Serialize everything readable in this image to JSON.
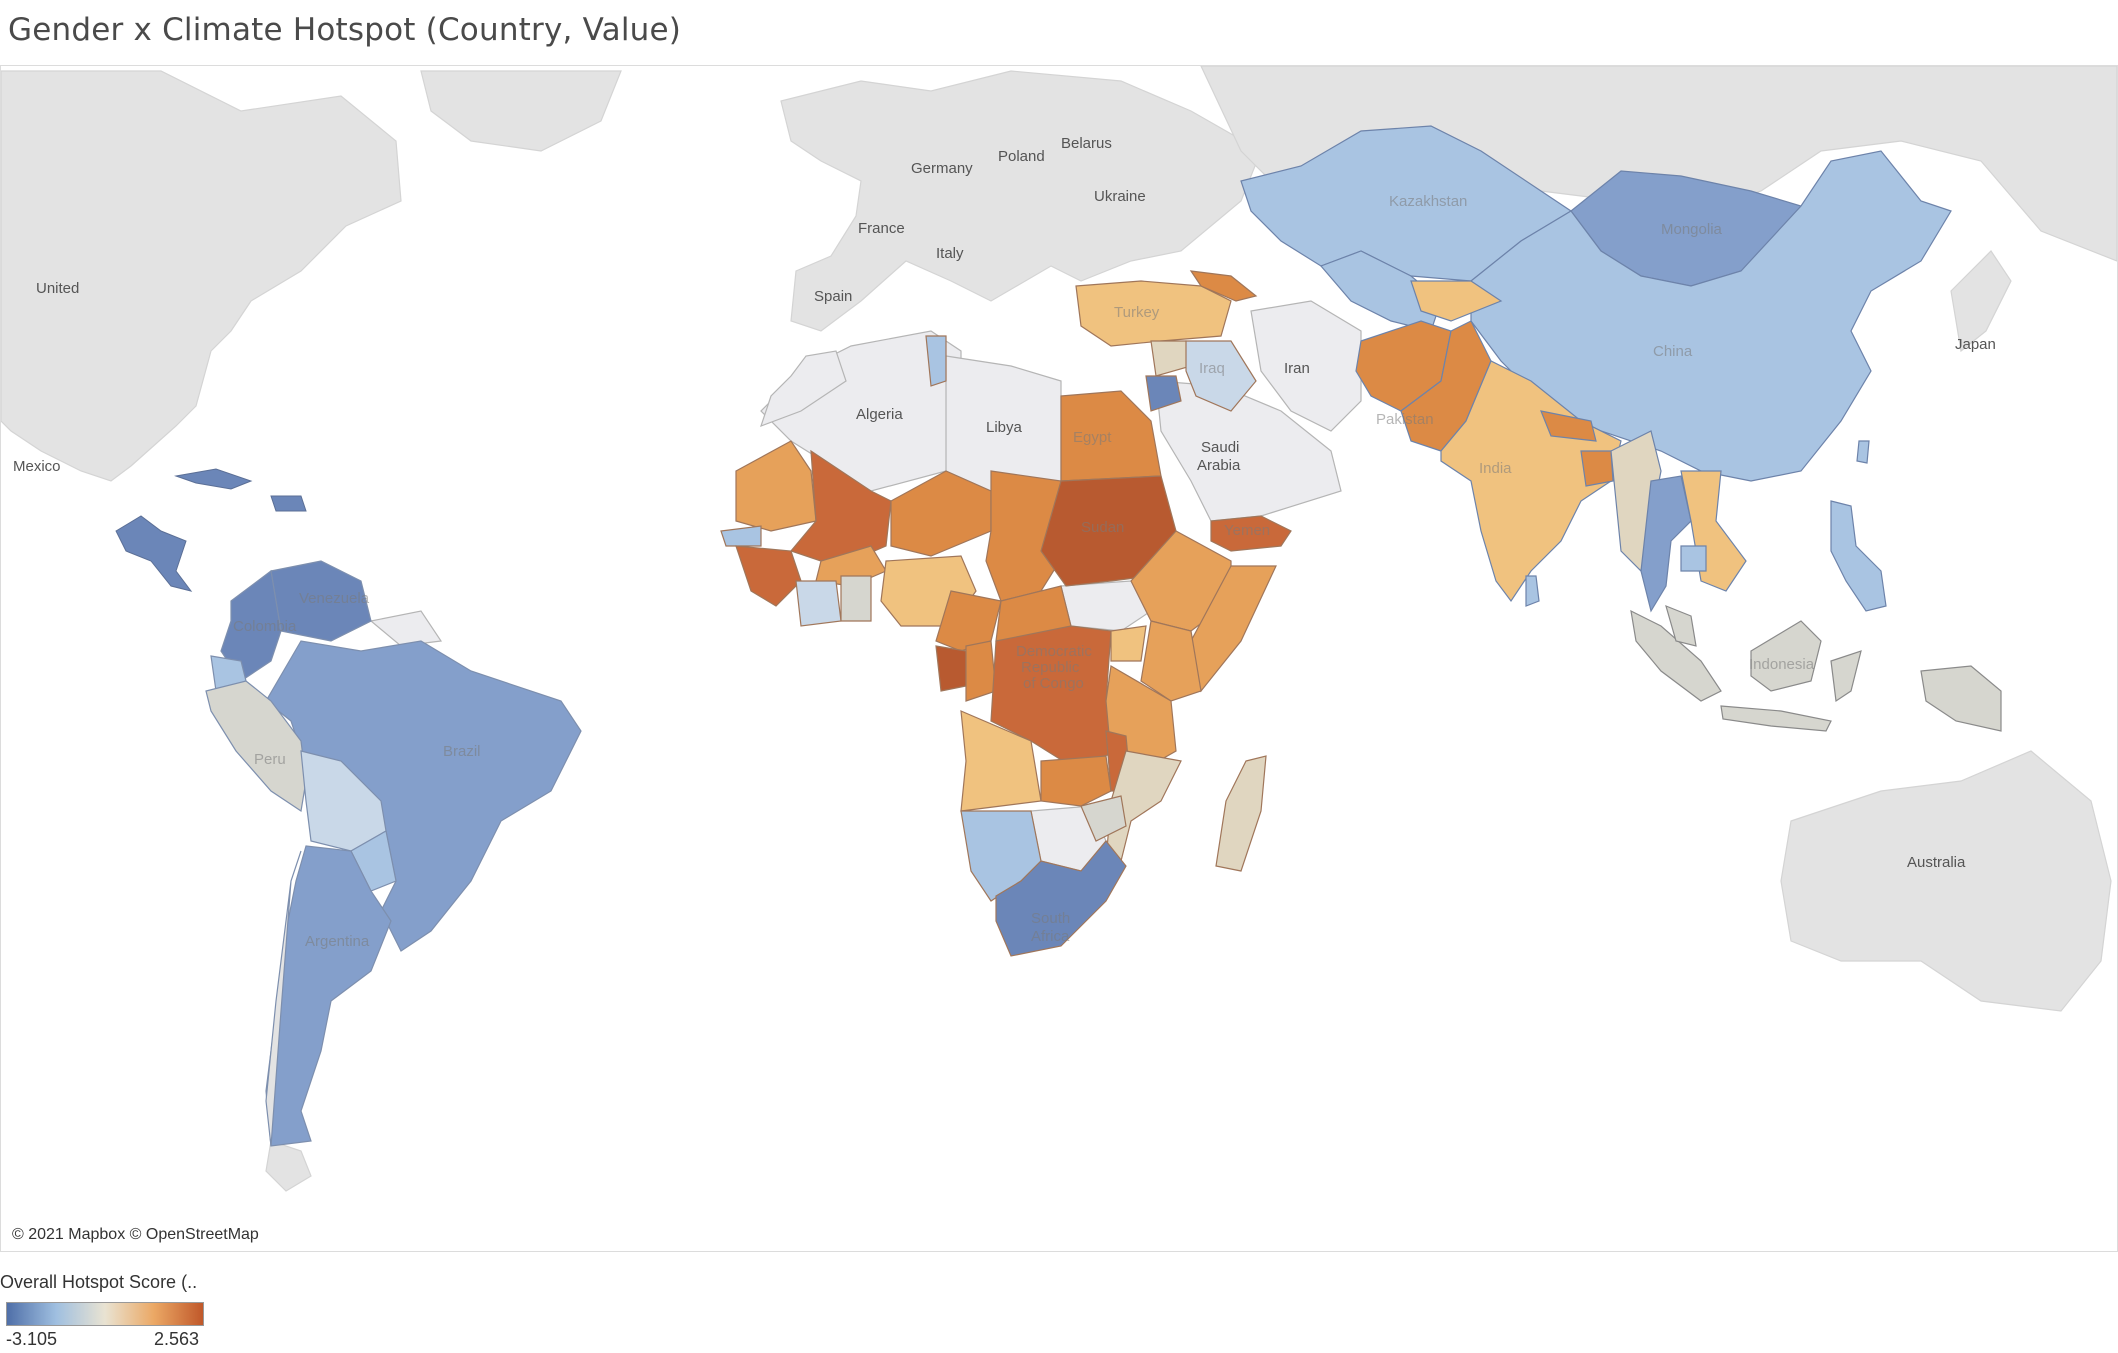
{
  "title": "Gender x Climate Hotspot (Country, Value)",
  "credit": "© 2021 Mapbox © OpenStreetMap",
  "legend": {
    "title": "Overall Hotspot Score (..",
    "min": "-3.105",
    "max": "2.563",
    "gradient": [
      "#4f6fa8",
      "#9fbfe0",
      "#e9e3d2",
      "#eba865",
      "#c0582a"
    ]
  },
  "colors": {
    "ocean": "#ffffff",
    "land_no_data": "#e2e2e2",
    "land_neutral": "#ececef",
    "strong_blue": "#6b86b8",
    "mid_blue": "#849fcb",
    "light_blue": "#a9c4e2",
    "pale_blue": "#c9d8e8",
    "grey_neutral": "#d6d6cf",
    "beige": "#e0d6c0",
    "light_orange": "#f0c27f",
    "mid_orange": "#e6a15a",
    "orange": "#dc8a45",
    "dark_orange": "#c9693a",
    "darkest_orange": "#b85a30"
  },
  "map_labels": {
    "united_states": "United\nStates",
    "mexico": "Mexico",
    "spain": "Spain",
    "france": "France",
    "germany": "Germany",
    "poland": "Poland",
    "belarus": "Belarus",
    "ukraine": "Ukraine",
    "italy": "Italy",
    "turkey": "Turkey",
    "iraq": "Iraq",
    "iran": "Iran",
    "algeria": "Algeria",
    "libya": "Libya",
    "egypt": "Egypt",
    "saudi_arabia": "Saudi\nArabia",
    "sudan": "Sudan",
    "yemen": "Yemen",
    "drc": "Democratic\nRepublic\nof Congo",
    "south_africa": "South\nAfrica",
    "kazakhstan": "Kazakhstan",
    "mongolia": "Mongolia",
    "china": "China",
    "japan": "Japan",
    "pakistan": "Pakistan",
    "india": "India",
    "indonesia": "Indonesia",
    "australia": "Australia",
    "venezuela": "Venezuela",
    "colombia": "Colombia",
    "peru": "Peru",
    "brazil": "Brazil",
    "argentina": "Argentina"
  }
}
